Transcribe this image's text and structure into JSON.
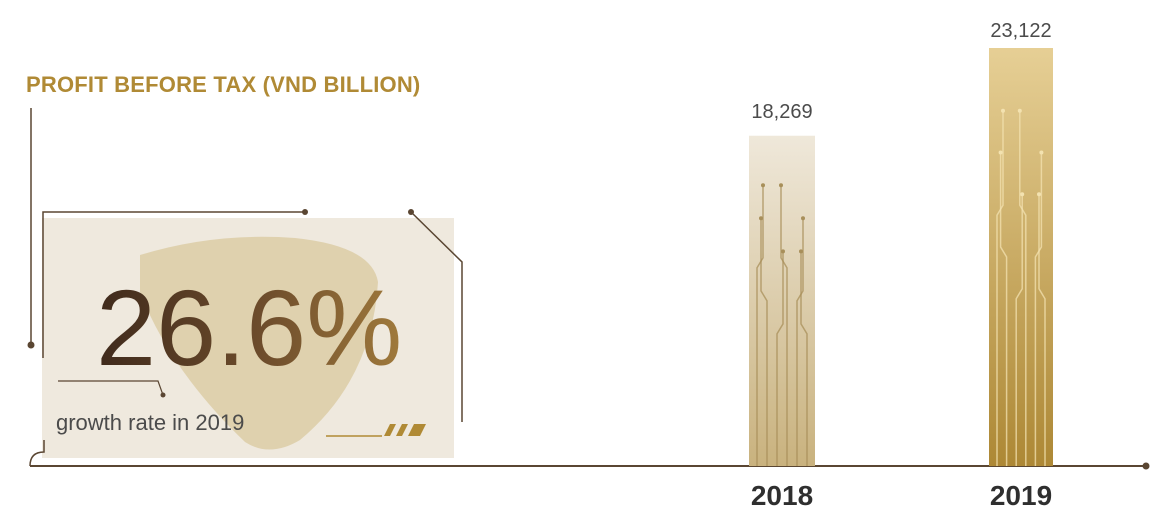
{
  "headline": {
    "percent": "26.6%",
    "caption": "growth rate in 2019"
  },
  "colors": {
    "title_gold": "#b08a35",
    "line_brown": "#5a4632",
    "bar_2018_light": "#ece4d2",
    "bar_2018_dark": "#c8b07a",
    "bar_2019_light": "#e2ca8c",
    "bar_2019_dark": "#b08a35"
  },
  "chart_data": {
    "type": "bar",
    "title": "PROFIT BEFORE TAX (VND BILLION)",
    "categories": [
      "2018",
      "2019"
    ],
    "values": [
      18269,
      23122
    ],
    "value_labels": [
      "18,269",
      "23,122"
    ],
    "ylim": [
      0,
      23122
    ]
  }
}
